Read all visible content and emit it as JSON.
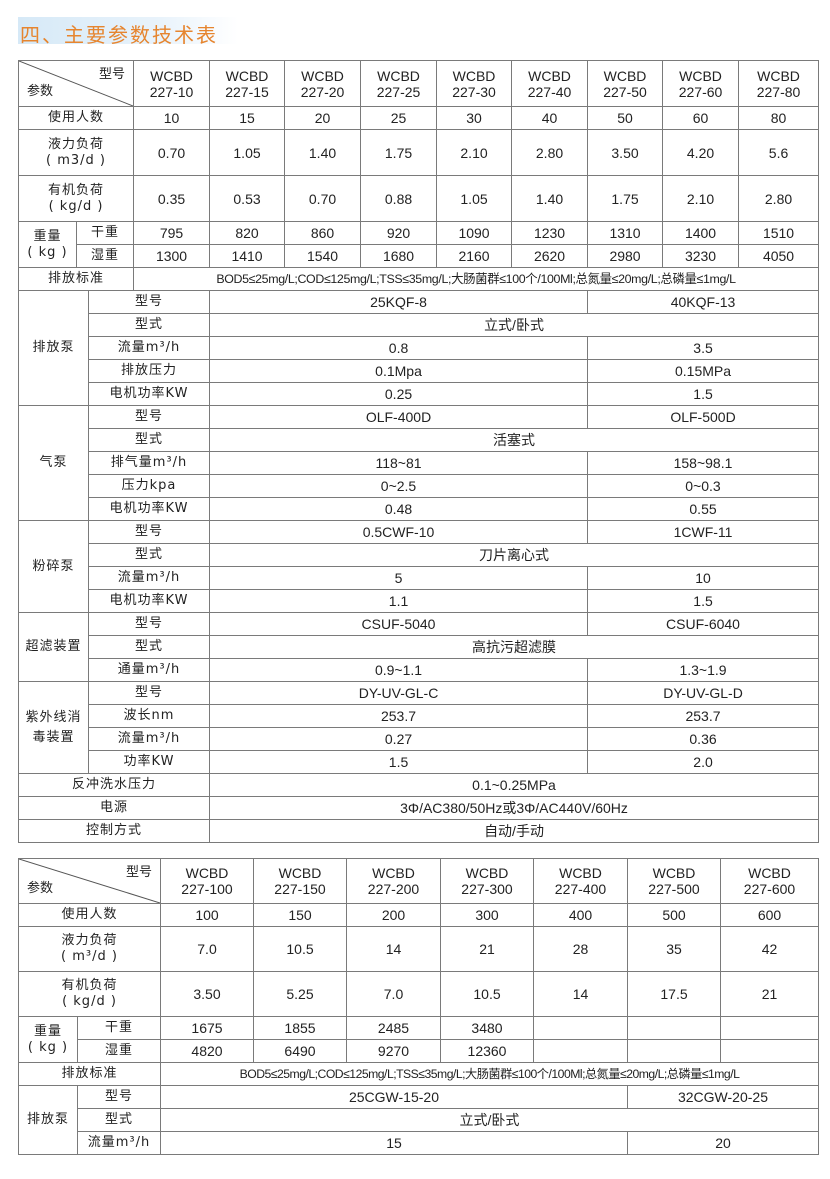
{
  "title": "四、主要参数技术表",
  "table1": {
    "param_label": "参数",
    "model_label": "型号",
    "models": [
      [
        "WCBD",
        "227-10"
      ],
      [
        "WCBD",
        "227-15"
      ],
      [
        "WCBD",
        "227-20"
      ],
      [
        "WCBD",
        "227-25"
      ],
      [
        "WCBD",
        "227-30"
      ],
      [
        "WCBD",
        "227-40"
      ],
      [
        "WCBD",
        "227-50"
      ],
      [
        "WCBD",
        "227-60"
      ],
      [
        "WCBD",
        "227-80"
      ]
    ],
    "users": {
      "label": "使用人数",
      "values": [
        "10",
        "15",
        "20",
        "25",
        "30",
        "40",
        "50",
        "60",
        "80"
      ]
    },
    "hydraulic": {
      "label": "液力负荷",
      "unit": "( m3/d )",
      "values": [
        "0.70",
        "1.05",
        "1.40",
        "1.75",
        "2.10",
        "2.80",
        "3.50",
        "4.20",
        "5.6"
      ]
    },
    "organic": {
      "label": "有机负荷",
      "unit": "( kg/d )",
      "values": [
        "0.35",
        "0.53",
        "0.70",
        "0.88",
        "1.05",
        "1.40",
        "1.75",
        "2.10",
        "2.80"
      ]
    },
    "weight": {
      "label": "重量",
      "unit": "( kg )",
      "dry_label": "干重",
      "dry": [
        "795",
        "820",
        "860",
        "920",
        "1090",
        "1230",
        "1310",
        "1400",
        "1510"
      ],
      "wet_label": "湿重",
      "wet": [
        "1300",
        "1410",
        "1540",
        "1680",
        "2160",
        "2620",
        "2980",
        "3230",
        "4050"
      ]
    },
    "standard": {
      "label": "排放标准",
      "value": "BOD5≤25mg/L;COD≤125mg/L;TSS≤35mg/L;大肠菌群≤100个/100Ml;总氮量≤20mg/L;总磷量≤1mg/L"
    },
    "groups": [
      {
        "label": "排放泵",
        "items": [
          {
            "label": "型号",
            "values": [
              "25KQF-8",
              "40KQF-13"
            ]
          },
          {
            "label": "型式",
            "value": "立式/卧式"
          },
          {
            "label": "流量m³/h",
            "values": [
              "0.8",
              "3.5"
            ]
          },
          {
            "label": "排放压力",
            "values": [
              "0.1Mpa",
              "0.15MPa"
            ]
          },
          {
            "label": "电机功率KW",
            "values": [
              "0.25",
              "1.5"
            ]
          }
        ]
      },
      {
        "label": "气泵",
        "items": [
          {
            "label": "型号",
            "values": [
              "OLF-400D",
              "OLF-500D"
            ]
          },
          {
            "label": "型式",
            "value": "活塞式"
          },
          {
            "label": "排气量m³/h",
            "values": [
              "118~81",
              "158~98.1"
            ]
          },
          {
            "label": "压力kpa",
            "values": [
              "0~2.5",
              "0~0.3"
            ]
          },
          {
            "label": "电机功率KW",
            "values": [
              "0.48",
              "0.55"
            ]
          }
        ]
      },
      {
        "label": "粉碎泵",
        "items": [
          {
            "label": "型号",
            "values": [
              "0.5CWF-10",
              "1CWF-11"
            ]
          },
          {
            "label": "型式",
            "value": "刀片离心式"
          },
          {
            "label": "流量m³/h",
            "values": [
              "5",
              "10"
            ]
          },
          {
            "label": "电机功率KW",
            "values": [
              "1.1",
              "1.5"
            ]
          }
        ]
      },
      {
        "label": "超滤装置",
        "items": [
          {
            "label": "型号",
            "values": [
              "CSUF-5040",
              "CSUF-6040"
            ]
          },
          {
            "label": "型式",
            "value": "高抗污超滤膜"
          },
          {
            "label": "通量m³/h",
            "values": [
              "0.9~1.1",
              "1.3~1.9"
            ]
          }
        ]
      },
      {
        "label": "紫外线消毒装置",
        "items": [
          {
            "label": "型号",
            "values": [
              "DY-UV-GL-C",
              "DY-UV-GL-D"
            ]
          },
          {
            "label": "波长nm",
            "values": [
              "253.7",
              "253.7"
            ]
          },
          {
            "label": "流量m³/h",
            "values": [
              "0.27",
              "0.36"
            ]
          },
          {
            "label": "功率KW",
            "values": [
              "1.5",
              "2.0"
            ]
          }
        ]
      }
    ],
    "footer": [
      {
        "label": "反冲洗水压力",
        "value": "0.1~0.25MPa"
      },
      {
        "label": "电源",
        "value": "3Φ/AC380/50Hz或3Φ/AC440V/60Hz"
      },
      {
        "label": "控制方式",
        "value": "自动/手动"
      }
    ]
  },
  "table2": {
    "param_label": "参数",
    "model_label": "型号",
    "models": [
      [
        "WCBD",
        "227-100"
      ],
      [
        "WCBD",
        "227-150"
      ],
      [
        "WCBD",
        "227-200"
      ],
      [
        "WCBD",
        "227-300"
      ],
      [
        "WCBD",
        "227-400"
      ],
      [
        "WCBD",
        "227-500"
      ],
      [
        "WCBD",
        "227-600"
      ]
    ],
    "users": {
      "label": "使用人数",
      "values": [
        "100",
        "150",
        "200",
        "300",
        "400",
        "500",
        "600"
      ]
    },
    "hydraulic": {
      "label": "液力负荷",
      "unit": "( m³/d )",
      "values": [
        "7.0",
        "10.5",
        "14",
        "21",
        "28",
        "35",
        "42"
      ]
    },
    "organic": {
      "label": "有机负荷",
      "unit": "( kg/d )",
      "values": [
        "3.50",
        "5.25",
        "7.0",
        "10.5",
        "14",
        "17.5",
        "21"
      ]
    },
    "weight": {
      "label": "重量",
      "unit": "( kg )",
      "dry_label": "干重",
      "dry": [
        "1675",
        "1855",
        "2485",
        "3480",
        "",
        "",
        ""
      ],
      "wet_label": "湿重",
      "wet": [
        "4820",
        "6490",
        "9270",
        "12360",
        "",
        "",
        ""
      ]
    },
    "standard": {
      "label": "排放标准",
      "value": "BOD5≤25mg/L;COD≤125mg/L;TSS≤35mg/L;大肠菌群≤100个/100Ml;总氮量≤20mg/L;总磷量≤1mg/L"
    },
    "groups": [
      {
        "label": "排放泵",
        "items": [
          {
            "label": "型号",
            "values": [
              "25CGW-15-20",
              "32CGW-20-25"
            ]
          },
          {
            "label": "型式",
            "value": "立式/卧式"
          },
          {
            "label": "流量m³/h",
            "values": [
              "15",
              "20"
            ]
          }
        ]
      }
    ]
  }
}
